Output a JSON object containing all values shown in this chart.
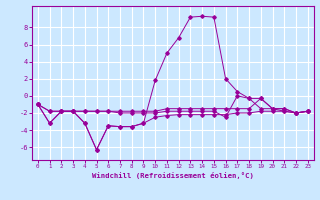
{
  "x_hours": [
    0,
    1,
    2,
    3,
    4,
    5,
    6,
    7,
    8,
    9,
    10,
    11,
    12,
    13,
    14,
    15,
    16,
    17,
    18,
    19,
    20,
    21,
    22,
    23
  ],
  "line_spike": [
    -1.0,
    -3.2,
    -1.8,
    -1.8,
    -3.2,
    -6.3,
    -3.5,
    -3.6,
    -3.6,
    -3.2,
    1.8,
    5.0,
    6.8,
    9.2,
    9.3,
    9.2,
    2.0,
    0.5,
    -0.3,
    -1.5,
    -1.5,
    -1.8,
    -2.0,
    -1.8
  ],
  "line_top": [
    -1.0,
    -1.8,
    -1.8,
    -1.8,
    -1.8,
    -1.8,
    -1.8,
    -1.8,
    -1.8,
    -1.8,
    -1.8,
    -1.5,
    -1.5,
    -1.5,
    -1.5,
    -1.5,
    -1.5,
    -1.5,
    -1.5,
    -0.3,
    -1.5,
    -1.5,
    -2.0,
    -1.8
  ],
  "line_bot": [
    -1.0,
    -3.2,
    -1.8,
    -1.8,
    -3.2,
    -6.3,
    -3.5,
    -3.6,
    -3.6,
    -3.2,
    -2.5,
    -2.3,
    -2.2,
    -2.2,
    -2.2,
    -2.2,
    -2.2,
    -2.0,
    -2.0,
    -1.8,
    -1.8,
    -1.8,
    -2.0,
    -1.8
  ],
  "line_mid": [
    -1.0,
    -1.8,
    -1.8,
    -1.8,
    -1.8,
    -1.8,
    -1.8,
    -2.0,
    -2.0,
    -2.0,
    -2.0,
    -1.8,
    -1.8,
    -1.8,
    -1.8,
    -1.8,
    -2.5,
    0.0,
    -0.3,
    -0.3,
    -1.5,
    -1.5,
    -2.0,
    -1.8
  ],
  "line_color": "#990099",
  "bg_color": "#cce8ff",
  "grid_color": "#ffffff",
  "xlabel": "Windchill (Refroidissement éolien,°C)",
  "xlim": [
    -0.5,
    23.5
  ],
  "ylim": [
    -7.5,
    10.5
  ],
  "yticks": [
    -6,
    -4,
    -2,
    0,
    2,
    4,
    6,
    8
  ],
  "xticks": [
    0,
    1,
    2,
    3,
    4,
    5,
    6,
    7,
    8,
    9,
    10,
    11,
    12,
    13,
    14,
    15,
    16,
    17,
    18,
    19,
    20,
    21,
    22,
    23
  ]
}
